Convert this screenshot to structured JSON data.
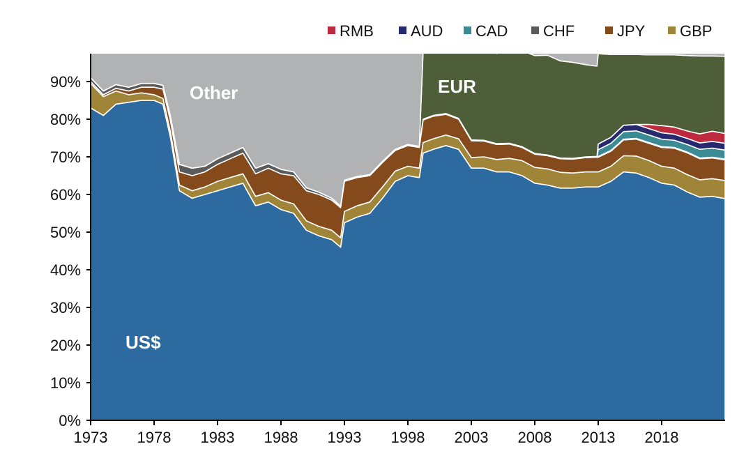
{
  "chart_data": {
    "type": "area",
    "stacked": true,
    "title": "",
    "xlabel": "",
    "ylabel": "",
    "xlim": [
      1973,
      2023
    ],
    "ylim": [
      0,
      97.4
    ],
    "grid": false,
    "legend_placement": "top-right",
    "x_ticks": [
      "1973",
      "1978",
      "1983",
      "1988",
      "1993",
      "1998",
      "2003",
      "2008",
      "2013",
      "2018"
    ],
    "y_ticks": [
      "0%",
      "10%",
      "20%",
      "30%",
      "40%",
      "50%",
      "60%",
      "70%",
      "80%",
      "90%"
    ],
    "legend": [
      "RMB",
      "AUD",
      "CAD",
      "CHF",
      "JPY",
      "GBP"
    ],
    "annotations": {
      "usd": "US$",
      "other": "Other",
      "eur": "EUR"
    },
    "x": [
      1973,
      1974,
      1975,
      1976,
      1977,
      1978,
      1978.7,
      1979.3,
      1980,
      1981,
      1982,
      1983,
      1984,
      1985,
      1986,
      1987,
      1988,
      1989,
      1990,
      1991,
      1992,
      1992.7,
      1993,
      1994,
      1995,
      1996,
      1997,
      1998,
      1998.9,
      1999.2,
      2000,
      2001,
      2002,
      2003,
      2004,
      2005,
      2006,
      2007,
      2008,
      2009,
      2010,
      2011,
      2012,
      2012.9,
      2013,
      2014,
      2015,
      2016,
      2017,
      2018,
      2019,
      2020,
      2021,
      2022,
      2023
    ],
    "series": [
      {
        "name": "US$",
        "key": "usd",
        "color": "#2d6a9f",
        "values": [
          83,
          81,
          84,
          84.5,
          85,
          85,
          84,
          75,
          61,
          59,
          60,
          61,
          62,
          63,
          57,
          58,
          56,
          55,
          50.5,
          49,
          48,
          46,
          52.5,
          54,
          55,
          59,
          63.5,
          65,
          64.5,
          71,
          72,
          73,
          72,
          67,
          67,
          66,
          66,
          65,
          63,
          62.5,
          61.7,
          61.7,
          62,
          62,
          62,
          63.5,
          66,
          65.7,
          64.5,
          63,
          62.5,
          60.7,
          59.3,
          59.5,
          58.9
        ]
      },
      {
        "name": "GBP",
        "key": "gbp",
        "color": "#a08538",
        "values": [
          6.5,
          5,
          3.5,
          2,
          2,
          1.5,
          1.5,
          1.5,
          1.5,
          2,
          2,
          2.5,
          2.5,
          2.5,
          2.5,
          2.5,
          2.5,
          2.5,
          2.5,
          2.5,
          2.5,
          2.5,
          3,
          3,
          3,
          3,
          2.7,
          2.5,
          2.5,
          2.8,
          2.8,
          2.8,
          2.8,
          2.8,
          3,
          3.3,
          3.6,
          4,
          4.2,
          4.3,
          4.2,
          4,
          4,
          4,
          4,
          4,
          4.3,
          4.5,
          4.5,
          4.5,
          4.5,
          4.6,
          4.6,
          4.7,
          4.8
        ]
      },
      {
        "name": "JPY",
        "key": "jpy",
        "color": "#854a1c",
        "values": [
          0.5,
          0.5,
          0.7,
          1,
          1.5,
          2,
          2.5,
          3,
          3.5,
          4,
          4,
          4.5,
          5,
          5.5,
          6,
          6.5,
          7,
          7.5,
          8,
          8.5,
          8,
          8,
          8,
          7.5,
          7,
          6.5,
          5.5,
          5.5,
          5.5,
          6,
          6,
          5.5,
          5.2,
          4.5,
          4.2,
          4,
          3.8,
          3.5,
          3.5,
          3.5,
          3.6,
          3.7,
          3.8,
          3.9,
          3.9,
          4,
          4.2,
          4.5,
          4.6,
          5,
          5.3,
          5.8,
          5.6,
          5.5,
          5.5
        ]
      },
      {
        "name": "CHF",
        "key": "chf",
        "color": "#5a5a5a",
        "values": [
          1,
          1,
          1,
          1,
          1,
          1,
          1,
          1.2,
          2,
          2,
          1.5,
          1.5,
          1.5,
          1.5,
          1.5,
          1.2,
          1.2,
          1,
          0.8,
          0.6,
          0.5,
          0.4,
          0.3,
          0.3,
          0.3,
          0.3,
          0.3,
          0.3,
          0.3,
          0.2,
          0.2,
          0.2,
          0.2,
          0.2,
          0.2,
          0.2,
          0.2,
          0.2,
          0.2,
          0.2,
          0.2,
          0.2,
          0.2,
          0.2,
          0.2,
          0.2,
          0.2,
          0.2,
          0.2,
          0.2,
          0.2,
          0.2,
          0.2,
          0.2,
          0.2
        ]
      },
      {
        "name": "CAD",
        "key": "cad",
        "color": "#3a8b94",
        "values": [
          0,
          0,
          0,
          0,
          0,
          0,
          0,
          0,
          0,
          0,
          0,
          0,
          0,
          0,
          0,
          0,
          0,
          0,
          0,
          0,
          0,
          0,
          0,
          0,
          0,
          0,
          0,
          0,
          0,
          0,
          0,
          0,
          0,
          0,
          0,
          0,
          0,
          0,
          0,
          0,
          0,
          0,
          0,
          0,
          1.8,
          1.9,
          2,
          2,
          2,
          2,
          1.9,
          2,
          2.3,
          2.4,
          2.4
        ]
      },
      {
        "name": "AUD",
        "key": "aud",
        "color": "#262a6c",
        "values": [
          0,
          0,
          0,
          0,
          0,
          0,
          0,
          0,
          0,
          0,
          0,
          0,
          0,
          0,
          0,
          0,
          0,
          0,
          0,
          0,
          0,
          0,
          0,
          0,
          0,
          0,
          0,
          0,
          0,
          0,
          0,
          0,
          0,
          0,
          0,
          0,
          0,
          0,
          0,
          0,
          0,
          0,
          0,
          0,
          1.5,
          1.6,
          1.7,
          1.7,
          1.7,
          1.7,
          1.6,
          1.6,
          1.7,
          1.8,
          1.8
        ]
      },
      {
        "name": "RMB",
        "key": "rmb",
        "color": "#bd2a3e",
        "values": [
          0,
          0,
          0,
          0,
          0,
          0,
          0,
          0,
          0,
          0,
          0,
          0,
          0,
          0,
          0,
          0,
          0,
          0,
          0,
          0,
          0,
          0,
          0,
          0,
          0,
          0,
          0,
          0,
          0,
          0,
          0,
          0,
          0,
          0,
          0,
          0,
          0,
          0,
          0,
          0,
          0,
          0,
          0,
          0,
          0,
          0,
          0,
          0,
          1.1,
          1.9,
          1.9,
          2,
          2.4,
          2.7,
          2.6
        ]
      },
      {
        "name": "EUR",
        "key": "eur",
        "color": "#4e5e38",
        "values": [
          0,
          0,
          0,
          0,
          0,
          0,
          0,
          0,
          0,
          0,
          0,
          0,
          0,
          0,
          0,
          0,
          0,
          0,
          0,
          0,
          0,
          0,
          0,
          0,
          0,
          0,
          0,
          0,
          0,
          18,
          17.5,
          18.5,
          20,
          24,
          24.5,
          24,
          24.5,
          25.5,
          26,
          26.5,
          25.8,
          25.5,
          24.5,
          24,
          24,
          22,
          18.8,
          18.6,
          18.5,
          18.8,
          19.2,
          20,
          20.7,
          20,
          20.5
        ]
      },
      {
        "name": "Other",
        "key": "other",
        "color": "#b1b2b4",
        "values": "remainder-to-100"
      }
    ]
  }
}
